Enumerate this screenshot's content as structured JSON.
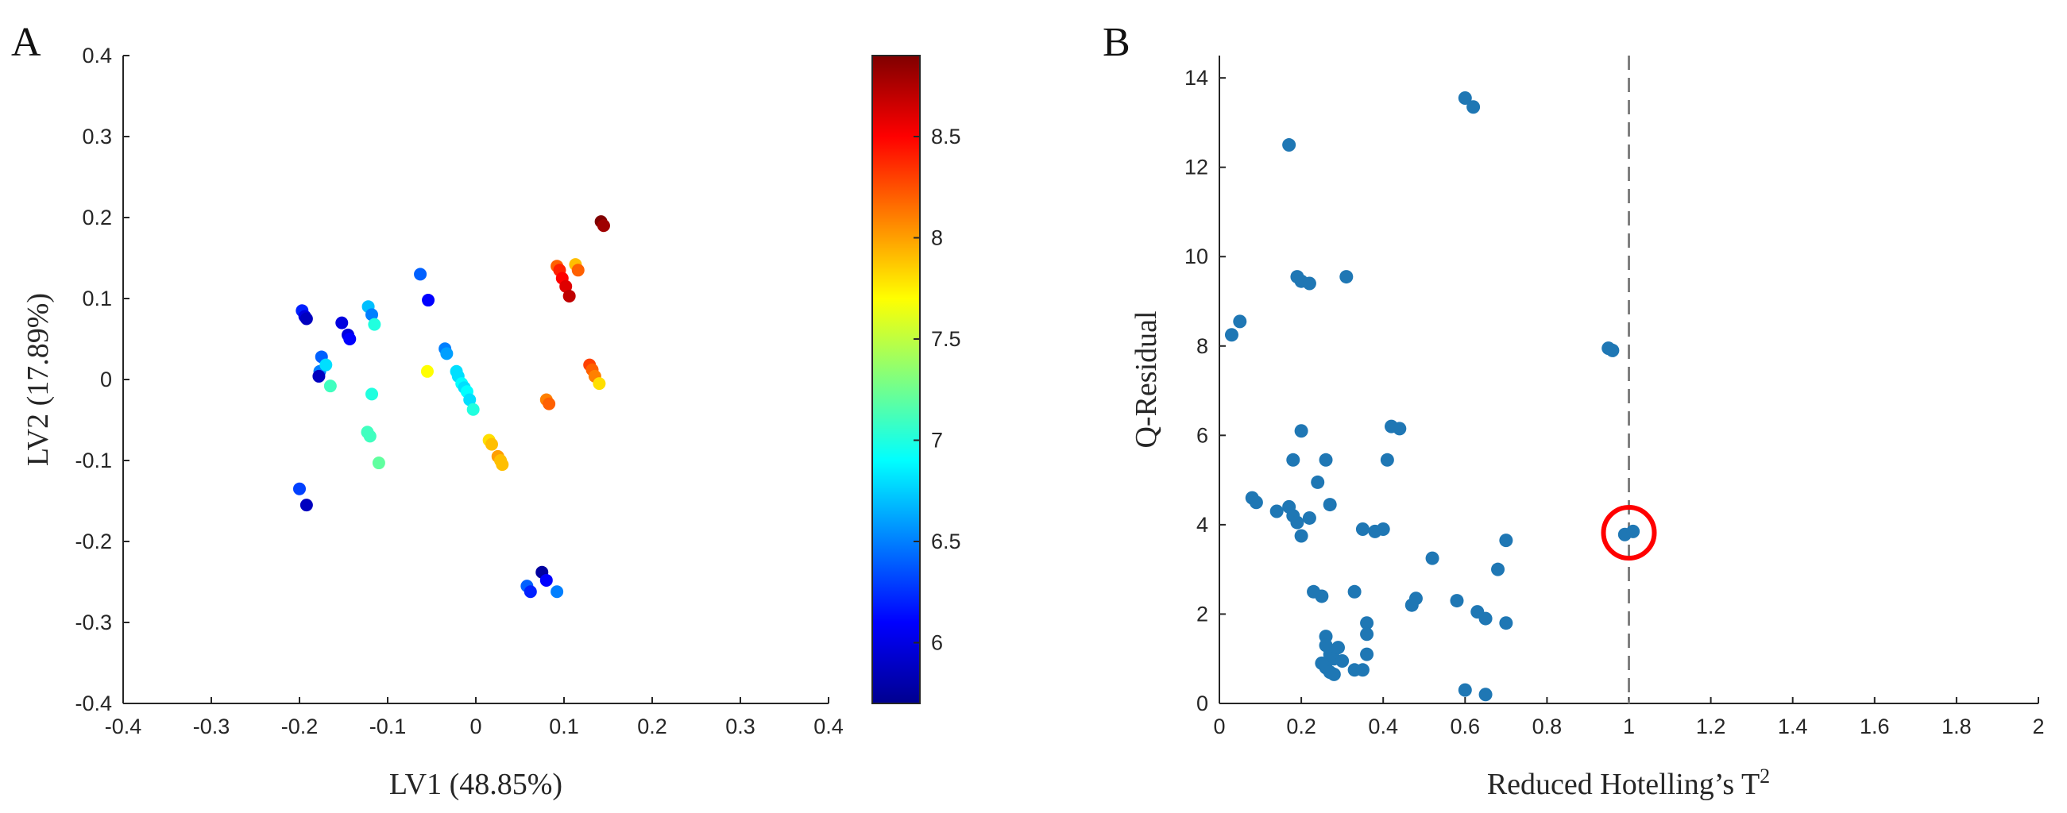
{
  "chart_data": [
    {
      "panel_label": "A",
      "type": "scatter",
      "xlabel": "LV1 (48.85%)",
      "ylabel": "LV2 (17.89%)",
      "xlim": [
        -0.4,
        0.4
      ],
      "ylim": [
        -0.4,
        0.4
      ],
      "xticks": [
        -0.4,
        -0.3,
        -0.2,
        -0.1,
        0,
        0.1,
        0.2,
        0.3,
        0.4
      ],
      "yticks": [
        -0.4,
        -0.3,
        -0.2,
        -0.1,
        0,
        0.1,
        0.2,
        0.3,
        0.4
      ],
      "xtick_labels": [
        "-0.4",
        "-0.3",
        "-0.2",
        "-0.1",
        "0",
        "0.1",
        "0.2",
        "0.3",
        "0.4"
      ],
      "ytick_labels": [
        "-0.4",
        "-0.3",
        "-0.2",
        "-0.1",
        "0",
        "0.1",
        "0.2",
        "0.3",
        "0.4"
      ],
      "grid": false,
      "colormap": "jet",
      "colorbar": {
        "range": [
          5.7,
          8.9
        ],
        "ticks": [
          6,
          6.5,
          7,
          7.5,
          8,
          8.5
        ],
        "tick_labels": [
          "6",
          "6.5",
          "7",
          "7.5",
          "8",
          "8.5"
        ]
      },
      "points": [
        {
          "x": -0.197,
          "y": 0.085,
          "c": 6.2
        },
        {
          "x": -0.194,
          "y": 0.078,
          "c": 6.0
        },
        {
          "x": -0.192,
          "y": 0.075,
          "c": 5.9
        },
        {
          "x": -0.152,
          "y": 0.07,
          "c": 6.0
        },
        {
          "x": -0.145,
          "y": 0.055,
          "c": 6.0
        },
        {
          "x": -0.143,
          "y": 0.05,
          "c": 6.1
        },
        {
          "x": -0.122,
          "y": 0.09,
          "c": 6.7
        },
        {
          "x": -0.118,
          "y": 0.08,
          "c": 6.5
        },
        {
          "x": -0.115,
          "y": 0.068,
          "c": 7.0
        },
        {
          "x": -0.063,
          "y": 0.13,
          "c": 6.4
        },
        {
          "x": -0.054,
          "y": 0.098,
          "c": 6.1
        },
        {
          "x": -0.175,
          "y": 0.028,
          "c": 6.4
        },
        {
          "x": -0.177,
          "y": 0.01,
          "c": 6.5
        },
        {
          "x": -0.17,
          "y": 0.018,
          "c": 6.8
        },
        {
          "x": -0.178,
          "y": 0.004,
          "c": 5.9
        },
        {
          "x": -0.165,
          "y": -0.008,
          "c": 7.1
        },
        {
          "x": -0.118,
          "y": -0.018,
          "c": 7.0
        },
        {
          "x": -0.123,
          "y": -0.065,
          "c": 7.1
        },
        {
          "x": -0.12,
          "y": -0.07,
          "c": 7.1
        },
        {
          "x": -0.11,
          "y": -0.103,
          "c": 7.2
        },
        {
          "x": -0.2,
          "y": -0.135,
          "c": 6.3
        },
        {
          "x": -0.192,
          "y": -0.155,
          "c": 5.9
        },
        {
          "x": -0.055,
          "y": 0.01,
          "c": 7.7
        },
        {
          "x": -0.035,
          "y": 0.038,
          "c": 6.5
        },
        {
          "x": -0.033,
          "y": 0.032,
          "c": 6.6
        },
        {
          "x": -0.022,
          "y": 0.01,
          "c": 6.8
        },
        {
          "x": -0.02,
          "y": 0.004,
          "c": 6.8
        },
        {
          "x": -0.016,
          "y": -0.005,
          "c": 6.9
        },
        {
          "x": -0.013,
          "y": -0.01,
          "c": 6.8
        },
        {
          "x": -0.01,
          "y": -0.015,
          "c": 6.9
        },
        {
          "x": -0.007,
          "y": -0.025,
          "c": 6.8
        },
        {
          "x": -0.003,
          "y": -0.037,
          "c": 7.0
        },
        {
          "x": 0.015,
          "y": -0.075,
          "c": 7.8
        },
        {
          "x": 0.018,
          "y": -0.08,
          "c": 7.9
        },
        {
          "x": 0.025,
          "y": -0.095,
          "c": 8.0
        },
        {
          "x": 0.028,
          "y": -0.1,
          "c": 7.9
        },
        {
          "x": 0.03,
          "y": -0.105,
          "c": 7.9
        },
        {
          "x": 0.08,
          "y": -0.025,
          "c": 8.1
        },
        {
          "x": 0.083,
          "y": -0.03,
          "c": 8.2
        },
        {
          "x": 0.092,
          "y": 0.14,
          "c": 8.2
        },
        {
          "x": 0.095,
          "y": 0.135,
          "c": 8.4
        },
        {
          "x": 0.098,
          "y": 0.125,
          "c": 8.5
        },
        {
          "x": 0.102,
          "y": 0.115,
          "c": 8.6
        },
        {
          "x": 0.106,
          "y": 0.103,
          "c": 8.7
        },
        {
          "x": 0.113,
          "y": 0.142,
          "c": 7.9
        },
        {
          "x": 0.116,
          "y": 0.135,
          "c": 8.2
        },
        {
          "x": 0.142,
          "y": 0.195,
          "c": 8.9
        },
        {
          "x": 0.145,
          "y": 0.19,
          "c": 8.8
        },
        {
          "x": 0.129,
          "y": 0.018,
          "c": 8.3
        },
        {
          "x": 0.132,
          "y": 0.012,
          "c": 8.2
        },
        {
          "x": 0.135,
          "y": 0.004,
          "c": 8.1
        },
        {
          "x": 0.14,
          "y": -0.005,
          "c": 7.8
        },
        {
          "x": 0.058,
          "y": -0.255,
          "c": 6.4
        },
        {
          "x": 0.062,
          "y": -0.262,
          "c": 6.2
        },
        {
          "x": 0.075,
          "y": -0.238,
          "c": 5.8
        },
        {
          "x": 0.08,
          "y": -0.248,
          "c": 6.1
        },
        {
          "x": 0.092,
          "y": -0.262,
          "c": 6.5
        }
      ]
    },
    {
      "panel_label": "B",
      "type": "scatter",
      "xlabel": "Reduced Hotelling’s T",
      "xlabel_superscript": "2",
      "ylabel": "Q-Residual",
      "xlim": [
        0,
        2
      ],
      "ylim": [
        0,
        14.5
      ],
      "xticks": [
        0,
        0.2,
        0.4,
        0.6,
        0.8,
        1,
        1.2,
        1.4,
        1.6,
        1.8,
        2
      ],
      "yticks": [
        0,
        2,
        4,
        6,
        8,
        10,
        12,
        14
      ],
      "xtick_labels": [
        "0",
        "0.2",
        "0.4",
        "0.6",
        "0.8",
        "1",
        "1.2",
        "1.4",
        "1.6",
        "1.8",
        "2"
      ],
      "ytick_labels": [
        "0",
        "2",
        "4",
        "6",
        "8",
        "10",
        "12",
        "14"
      ],
      "grid": false,
      "point_color": "#1f77b4",
      "threshold_line": {
        "x": 1,
        "style": "dashed",
        "color": "#808080"
      },
      "highlight": {
        "x": 1.0,
        "y": 3.82,
        "color": "#ff0000"
      },
      "points": [
        {
          "x": 0.03,
          "y": 8.25
        },
        {
          "x": 0.05,
          "y": 8.55
        },
        {
          "x": 0.08,
          "y": 4.6
        },
        {
          "x": 0.09,
          "y": 4.5
        },
        {
          "x": 0.14,
          "y": 4.3
        },
        {
          "x": 0.17,
          "y": 4.4
        },
        {
          "x": 0.18,
          "y": 4.2
        },
        {
          "x": 0.19,
          "y": 4.05
        },
        {
          "x": 0.2,
          "y": 3.75
        },
        {
          "x": 0.22,
          "y": 4.15
        },
        {
          "x": 0.17,
          "y": 12.5
        },
        {
          "x": 0.18,
          "y": 5.45
        },
        {
          "x": 0.2,
          "y": 6.1
        },
        {
          "x": 0.19,
          "y": 9.55
        },
        {
          "x": 0.2,
          "y": 9.45
        },
        {
          "x": 0.22,
          "y": 9.4
        },
        {
          "x": 0.31,
          "y": 9.55
        },
        {
          "x": 0.24,
          "y": 4.95
        },
        {
          "x": 0.26,
          "y": 5.45
        },
        {
          "x": 0.27,
          "y": 4.45
        },
        {
          "x": 0.23,
          "y": 2.5
        },
        {
          "x": 0.25,
          "y": 2.4
        },
        {
          "x": 0.26,
          "y": 1.5
        },
        {
          "x": 0.26,
          "y": 1.3
        },
        {
          "x": 0.27,
          "y": 1.1
        },
        {
          "x": 0.28,
          "y": 1.0
        },
        {
          "x": 0.25,
          "y": 0.9
        },
        {
          "x": 0.26,
          "y": 0.8
        },
        {
          "x": 0.27,
          "y": 0.7
        },
        {
          "x": 0.28,
          "y": 0.65
        },
        {
          "x": 0.29,
          "y": 1.25
        },
        {
          "x": 0.3,
          "y": 0.95
        },
        {
          "x": 0.33,
          "y": 0.75
        },
        {
          "x": 0.35,
          "y": 0.75
        },
        {
          "x": 0.33,
          "y": 2.5
        },
        {
          "x": 0.35,
          "y": 3.9
        },
        {
          "x": 0.38,
          "y": 3.85
        },
        {
          "x": 0.4,
          "y": 3.9
        },
        {
          "x": 0.36,
          "y": 1.8
        },
        {
          "x": 0.36,
          "y": 1.55
        },
        {
          "x": 0.36,
          "y": 1.1
        },
        {
          "x": 0.41,
          "y": 5.45
        },
        {
          "x": 0.42,
          "y": 6.2
        },
        {
          "x": 0.44,
          "y": 6.15
        },
        {
          "x": 0.47,
          "y": 2.2
        },
        {
          "x": 0.48,
          "y": 2.35
        },
        {
          "x": 0.52,
          "y": 3.25
        },
        {
          "x": 0.58,
          "y": 2.3
        },
        {
          "x": 0.6,
          "y": 0.3
        },
        {
          "x": 0.6,
          "y": 13.55
        },
        {
          "x": 0.62,
          "y": 13.35
        },
        {
          "x": 0.63,
          "y": 2.05
        },
        {
          "x": 0.65,
          "y": 1.9
        },
        {
          "x": 0.65,
          "y": 0.2
        },
        {
          "x": 0.68,
          "y": 3.0
        },
        {
          "x": 0.7,
          "y": 3.65
        },
        {
          "x": 0.7,
          "y": 1.8
        },
        {
          "x": 0.95,
          "y": 7.95
        },
        {
          "x": 0.96,
          "y": 7.9
        },
        {
          "x": 0.99,
          "y": 3.78
        },
        {
          "x": 1.01,
          "y": 3.85
        }
      ]
    }
  ]
}
